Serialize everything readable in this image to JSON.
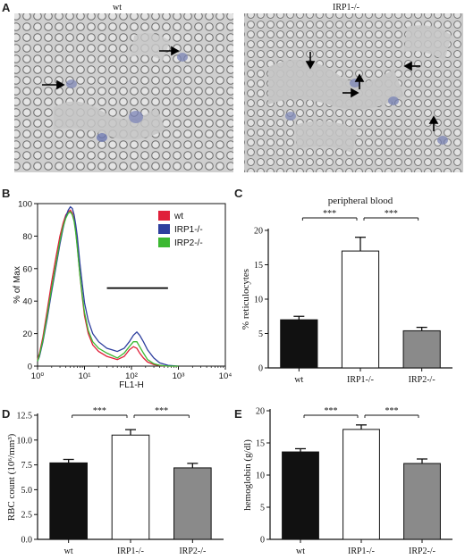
{
  "panels": {
    "a": {
      "letter": "A",
      "left_title": "wt",
      "right_title": "IRP1-/-"
    },
    "b": {
      "letter": "B"
    },
    "c": {
      "letter": "C"
    },
    "d": {
      "letter": "D"
    },
    "e": {
      "letter": "E"
    }
  },
  "chart_data": [
    {
      "id": "B",
      "type": "line",
      "title": "",
      "xlabel": "FL1-H",
      "ylabel": "% of Max",
      "xscale": "log",
      "xlim": [
        1,
        10000
      ],
      "ylim": [
        0,
        100
      ],
      "xtick_labels": [
        "10⁰",
        "10¹",
        "10²",
        "10³",
        "10⁴"
      ],
      "ytick_labels": [
        "0",
        "20",
        "40",
        "60",
        "80",
        "100"
      ],
      "legend_position": "top-right",
      "gate_bar": {
        "x_start": 30,
        "x_end": 600,
        "y": 48
      },
      "series": [
        {
          "name": "wt",
          "color": "#e0203a",
          "x": [
            1,
            1.1,
            1.3,
            1.6,
            2,
            2.5,
            3,
            3.5,
            4,
            4.5,
            5,
            5.5,
            6,
            6.5,
            7,
            8,
            9,
            10,
            12,
            15,
            20,
            30,
            50,
            70,
            90,
            110,
            130,
            150,
            180,
            220,
            300,
            400,
            600,
            1000
          ],
          "y": [
            4,
            8,
            18,
            34,
            52,
            68,
            80,
            88,
            93,
            95,
            96,
            94,
            90,
            83,
            74,
            56,
            42,
            31,
            20,
            13,
            9,
            6,
            4,
            6,
            10,
            12,
            11,
            8,
            5,
            2.5,
            1,
            0.4,
            0,
            0
          ]
        },
        {
          "name": "IRP1-/-",
          "color": "#2e3f9e",
          "x": [
            1,
            1.1,
            1.3,
            1.6,
            2,
            2.5,
            3,
            3.5,
            4,
            4.5,
            5,
            5.5,
            6,
            6.5,
            7,
            8,
            9,
            10,
            12,
            15,
            20,
            30,
            50,
            70,
            90,
            110,
            130,
            150,
            180,
            220,
            300,
            400,
            600,
            1000
          ],
          "y": [
            3,
            6,
            15,
            29,
            46,
            62,
            75,
            85,
            92,
            96,
            98,
            97,
            93,
            87,
            80,
            63,
            50,
            39,
            28,
            20,
            15,
            11,
            9,
            11,
            15,
            19,
            21,
            19,
            15,
            10,
            5,
            2,
            0.5,
            0
          ]
        },
        {
          "name": "IRP2-/-",
          "color": "#3cb832",
          "x": [
            1,
            1.1,
            1.3,
            1.6,
            2,
            2.5,
            3,
            3.5,
            4,
            4.5,
            5,
            5.5,
            6,
            6.5,
            7,
            8,
            9,
            10,
            12,
            15,
            20,
            30,
            50,
            70,
            90,
            110,
            130,
            150,
            180,
            220,
            300,
            400,
            600,
            1000
          ],
          "y": [
            3,
            7,
            16,
            31,
            48,
            64,
            77,
            86,
            91,
            94,
            95,
            93,
            89,
            82,
            73,
            56,
            43,
            33,
            22,
            15,
            11,
            8,
            5,
            8,
            12,
            15,
            15,
            12,
            8,
            4,
            1.5,
            0.5,
            0,
            0
          ]
        }
      ]
    },
    {
      "id": "C",
      "type": "bar",
      "title": "peripheral blood",
      "xlabel": "",
      "ylabel": "% reticulocytes",
      "categories": [
        "wt",
        "IRP1-/-",
        "IRP2-/-"
      ],
      "values": [
        7.0,
        17.0,
        5.4
      ],
      "errors": [
        0.5,
        2.0,
        0.5
      ],
      "bar_colors": [
        "#111111",
        "#ffffff",
        "#8a8a8a"
      ],
      "ylim": [
        0,
        20
      ],
      "yticks": [
        0,
        5,
        10,
        15,
        20
      ],
      "significance": [
        {
          "from": 0,
          "to": 1,
          "label": "***"
        },
        {
          "from": 1,
          "to": 2,
          "label": "***"
        }
      ]
    },
    {
      "id": "D",
      "type": "bar",
      "title": "",
      "xlabel": "",
      "ylabel": "RBC count (10⁶/mm³)",
      "categories": [
        "wt",
        "IRP1-/-",
        "IRP2-/-"
      ],
      "values": [
        7.7,
        10.5,
        7.2
      ],
      "errors": [
        0.35,
        0.55,
        0.45
      ],
      "bar_colors": [
        "#111111",
        "#ffffff",
        "#8a8a8a"
      ],
      "ylim": [
        0,
        12.5
      ],
      "yticks": [
        0.0,
        2.5,
        5.0,
        7.5,
        10.0,
        12.5
      ],
      "ytick_labels": [
        "0.0",
        "2.5",
        "5.0",
        "7.5",
        "10.0",
        "12.5"
      ],
      "significance": [
        {
          "from": 0,
          "to": 1,
          "label": "***"
        },
        {
          "from": 1,
          "to": 2,
          "label": "***"
        }
      ]
    },
    {
      "id": "E",
      "type": "bar",
      "title": "",
      "xlabel": "",
      "ylabel": "hemoglobin (g/dl)",
      "categories": [
        "wt",
        "IRP1-/-",
        "IRP2-/-"
      ],
      "values": [
        13.6,
        17.1,
        11.8
      ],
      "errors": [
        0.5,
        0.7,
        0.7
      ],
      "bar_colors": [
        "#111111",
        "#ffffff",
        "#8a8a8a"
      ],
      "ylim": [
        0,
        20
      ],
      "yticks": [
        0,
        5,
        10,
        15,
        20
      ],
      "significance": [
        {
          "from": 0,
          "to": 1,
          "label": "***"
        },
        {
          "from": 1,
          "to": 2,
          "label": "***"
        }
      ]
    }
  ]
}
